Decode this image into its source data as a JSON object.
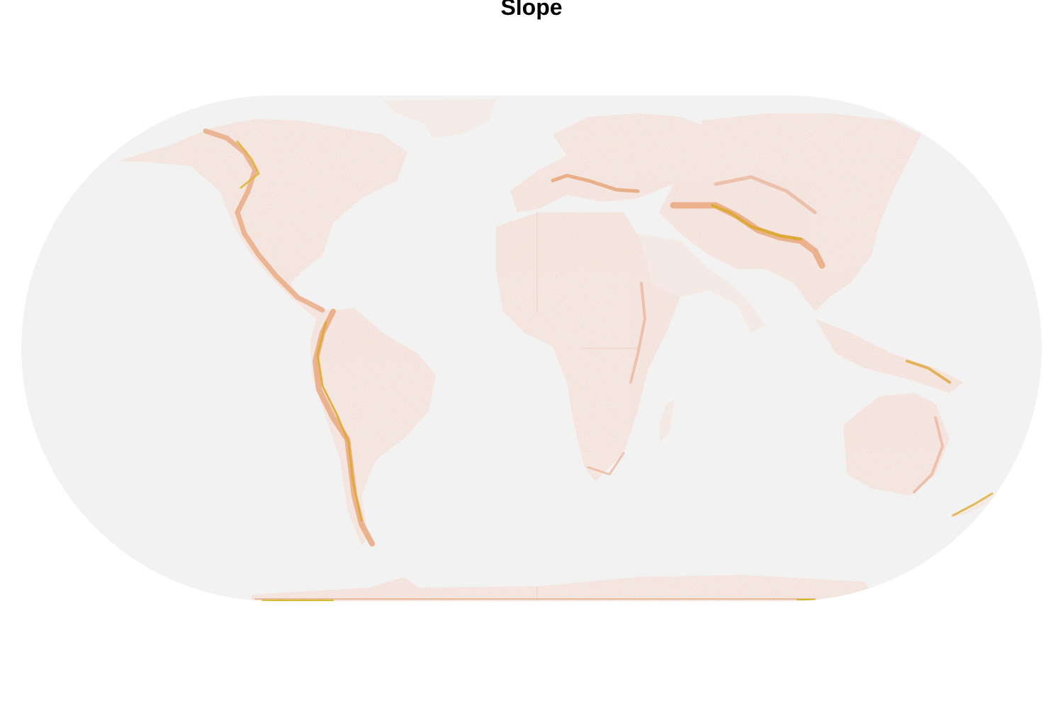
{
  "map": {
    "title": "Slope",
    "projection": "eckert-iv",
    "colors": {
      "ocean": "#f2f2f2",
      "low_slope": "#f7d9d0",
      "mid_slope": "#eab096",
      "high_slope": "#e8a63a",
      "peak_slope": "#c8b400"
    }
  }
}
